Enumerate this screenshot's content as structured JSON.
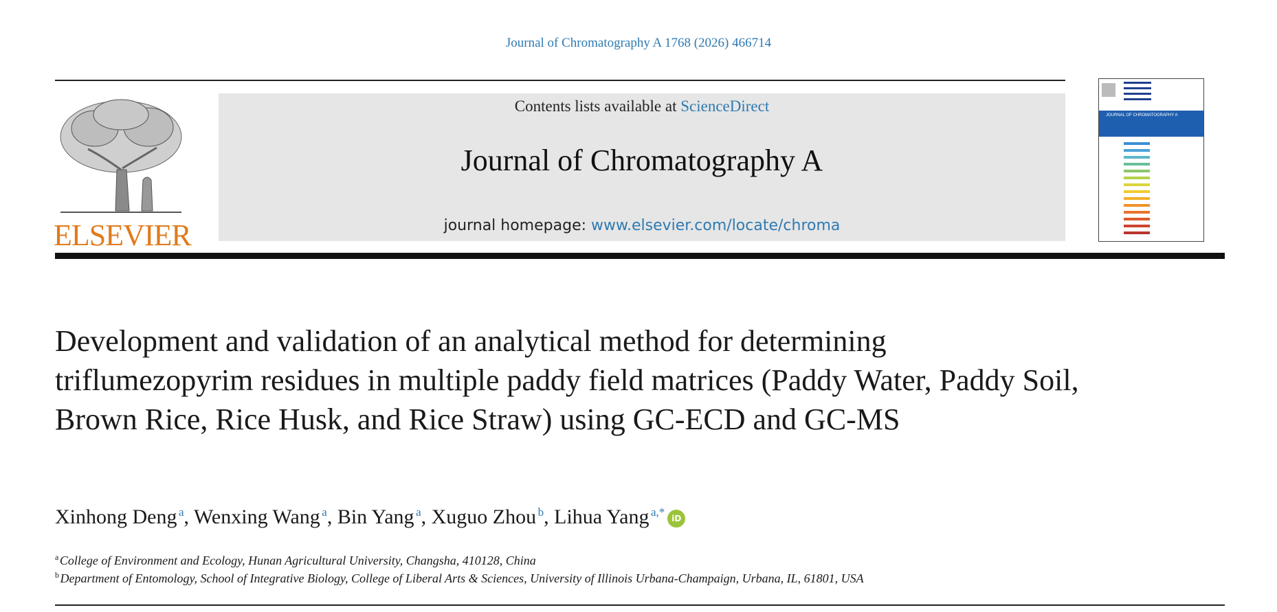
{
  "citation": "Journal of Chromatography A 1768 (2026) 466714",
  "publisher_logo": "ELSEVIER",
  "contents_prefix": "Contents lists available at ",
  "contents_link": "ScienceDirect",
  "journal_title": "Journal of Chromatography A",
  "homepage_prefix": "journal homepage: ",
  "homepage_url": "www.elsevier.com/locate/chroma",
  "cover_title": "JOURNAL OF CHROMATOGRAPHY A",
  "article_title": "Development and validation of an analytical method for determining triflumezopyrim residues in multiple paddy field matrices (Paddy Water, Paddy Soil, Brown Rice, Rice Husk, and Rice Straw) using GC-ECD and GC-MS",
  "authors": [
    {
      "name": "Xinhong Deng",
      "aff": "a"
    },
    {
      "name": "Wenxing Wang",
      "aff": "a"
    },
    {
      "name": "Bin Yang",
      "aff": "a"
    },
    {
      "name": "Xuguo Zhou",
      "aff": "b"
    },
    {
      "name": "Lihua Yang",
      "aff": "a,*"
    }
  ],
  "orcid_label": "iD",
  "affiliations": [
    {
      "label": "a",
      "text": "College of Environment and Ecology, Hunan Agricultural University, Changsha, 410128, China"
    },
    {
      "label": "b",
      "text": "Department of Entomology, School of Integrative Biology, College of Liberal Arts & Sciences, University of Illinois Urbana-Champaign, Urbana, IL, 61801, USA"
    }
  ],
  "colors": {
    "link": "#2f7ab1",
    "elsevier_orange": "#e07b1c",
    "orcid": "#9bc43a",
    "masthead_bg": "#e6e6e6",
    "cover_band": "#1f5fb0"
  }
}
